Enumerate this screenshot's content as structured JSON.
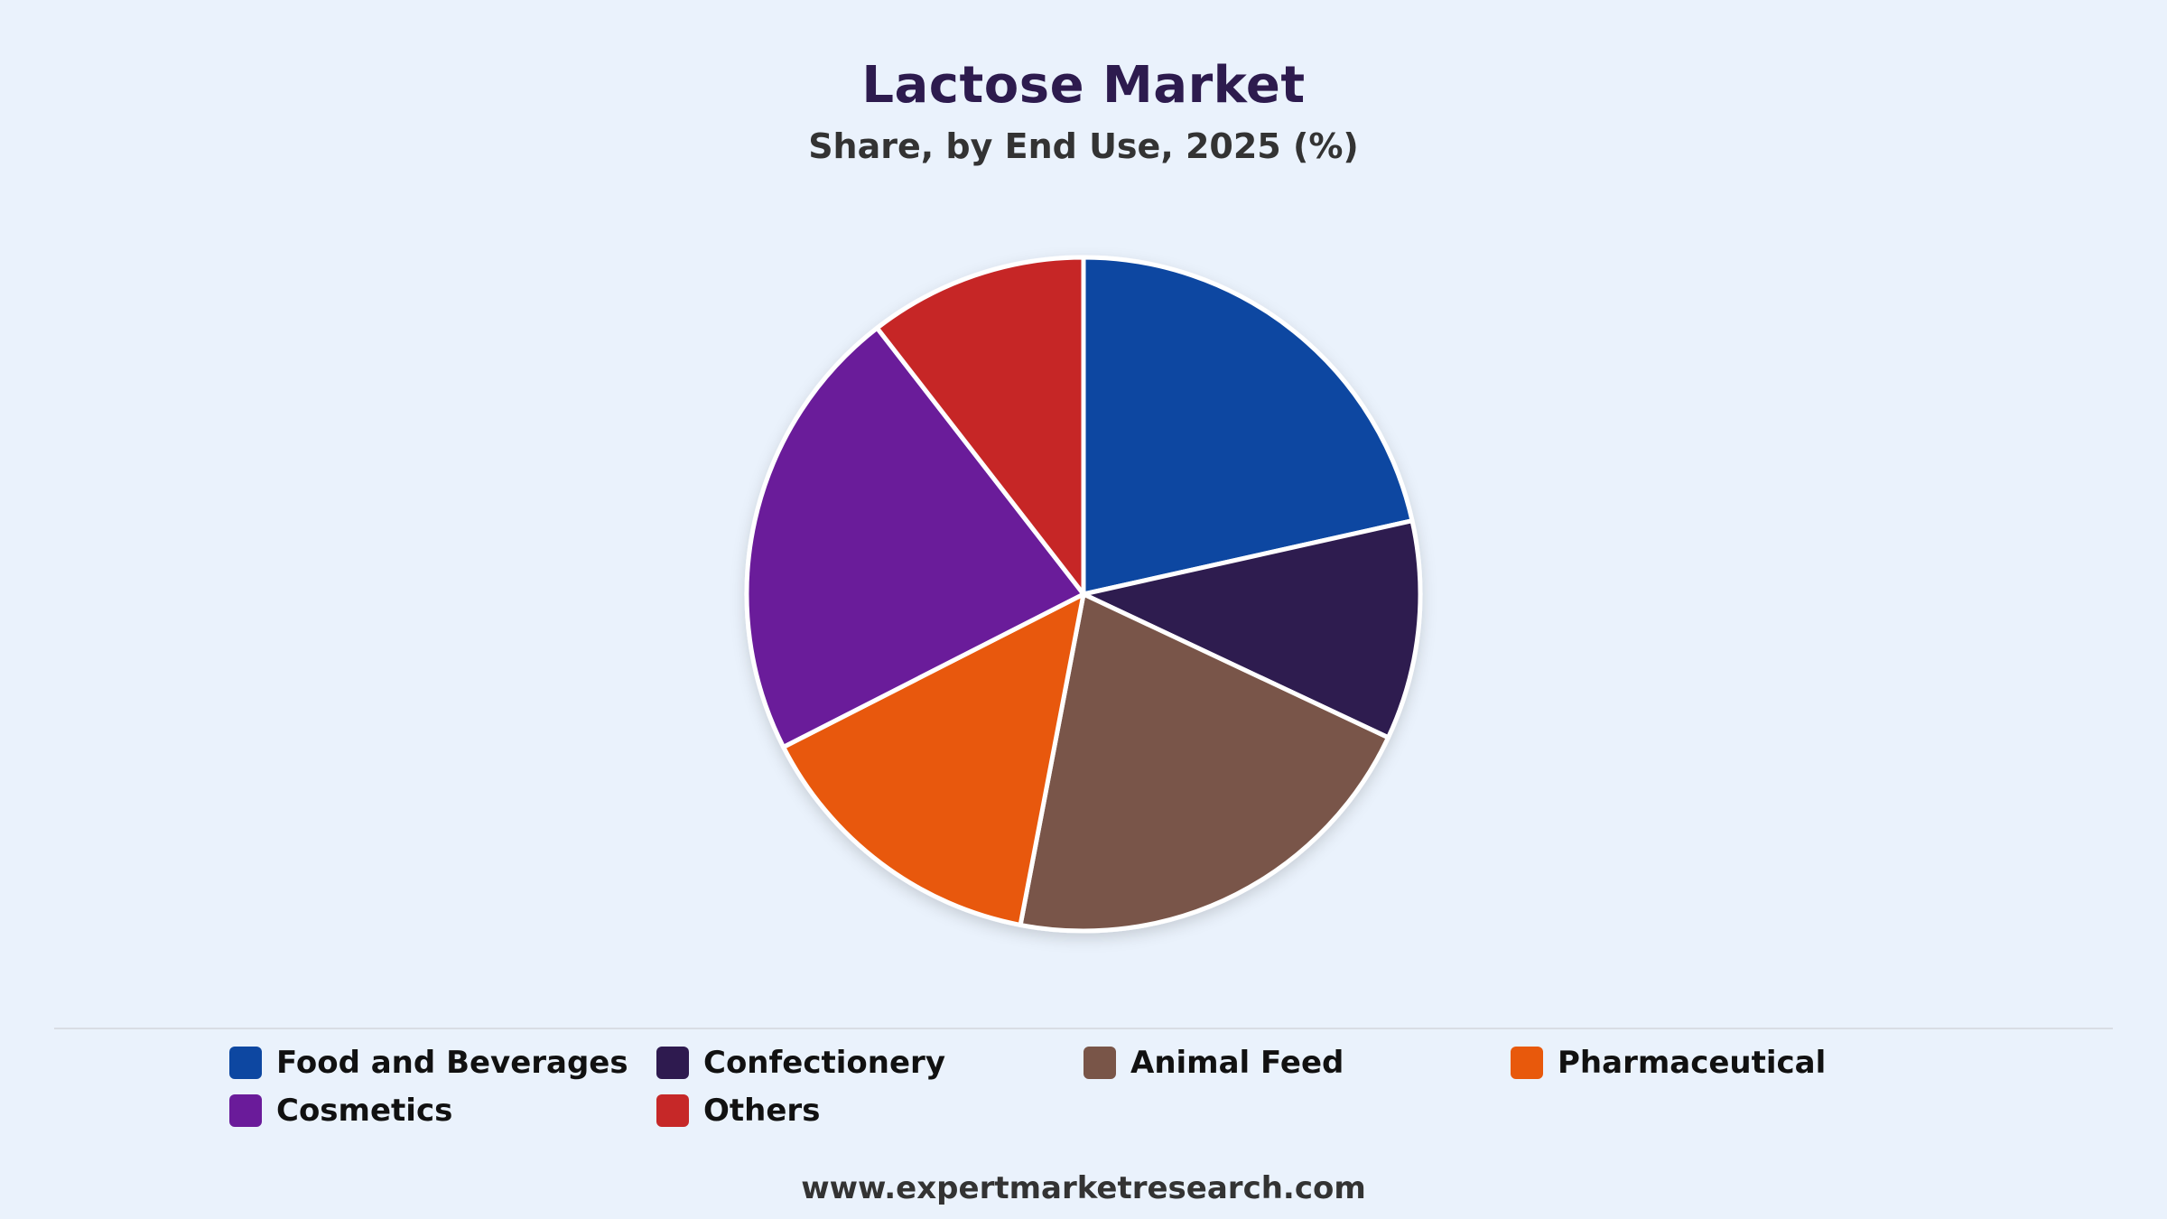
{
  "chart_data": {
    "type": "pie",
    "title": "Lactose Market",
    "subtitle": "Share, by End Use, 2025 (%)",
    "legend_position": "bottom",
    "slices": [
      {
        "label": "Food and Beverages",
        "value": 21.5,
        "color": "#0d47a1"
      },
      {
        "label": "Confectionery",
        "value": 10.5,
        "color": "#2e1a4f"
      },
      {
        "label": "Animal Feed",
        "value": 21.0,
        "color": "#795548"
      },
      {
        "label": "Pharmaceutical",
        "value": 14.5,
        "color": "#e8590c"
      },
      {
        "label": "Cosmetics",
        "value": 22.0,
        "color": "#6a1b9a"
      },
      {
        "label": "Others",
        "value": 10.5,
        "color": "#c62828"
      }
    ]
  },
  "footer": {
    "url": "www.expertmarketresearch.com"
  }
}
